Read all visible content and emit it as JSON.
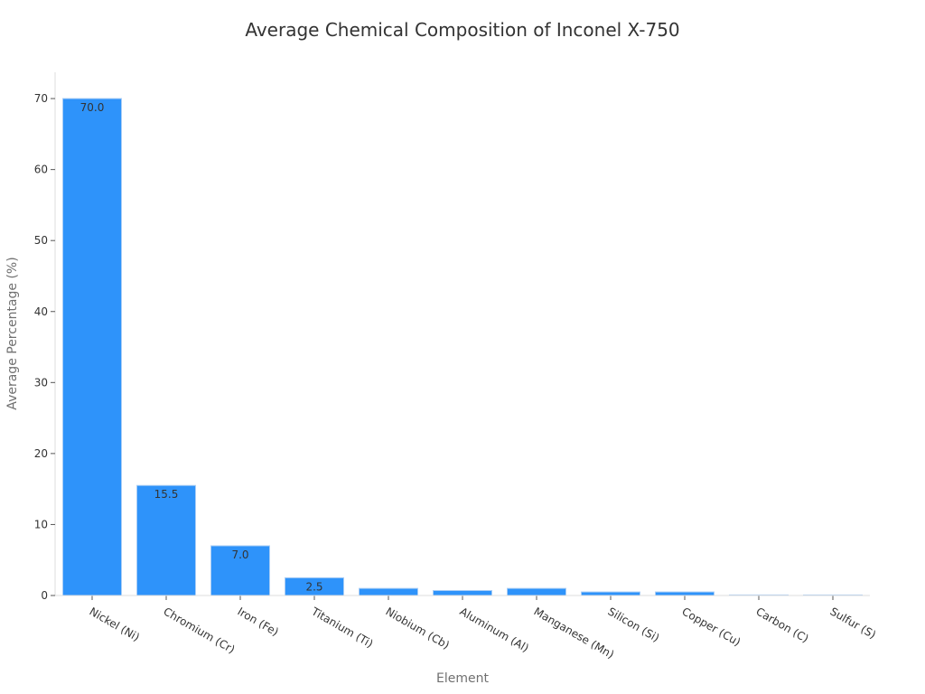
{
  "chart_data": {
    "type": "bar",
    "title": "Average Chemical Composition of Inconel X-750",
    "xlabel": "Element",
    "ylabel": "Average Percentage (%)",
    "categories": [
      "Nickel (Ni)",
      "Chromium (Cr)",
      "Iron (Fe)",
      "Titanium (Ti)",
      "Niobium (Cb)",
      "Aluminum (Al)",
      "Manganese (Mn)",
      "Silicon (Si)",
      "Copper (Cu)",
      "Carbon (C)",
      "Sulfur (S)"
    ],
    "values": [
      70.0,
      15.5,
      7.0,
      2.5,
      1.0,
      0.7,
      1.0,
      0.5,
      0.5,
      0.08,
      0.01
    ],
    "value_labels": [
      "70.0",
      "15.5",
      "7.0",
      "2.5",
      "",
      "",
      "",
      "",
      "",
      "",
      ""
    ],
    "yticks": [
      0,
      10,
      20,
      30,
      40,
      50,
      60,
      70
    ],
    "ylim": [
      0,
      73.7
    ],
    "grid": false,
    "legend": "none",
    "bar_color": "#2e93fa",
    "bar_edge_color": "#a9cdf5"
  }
}
